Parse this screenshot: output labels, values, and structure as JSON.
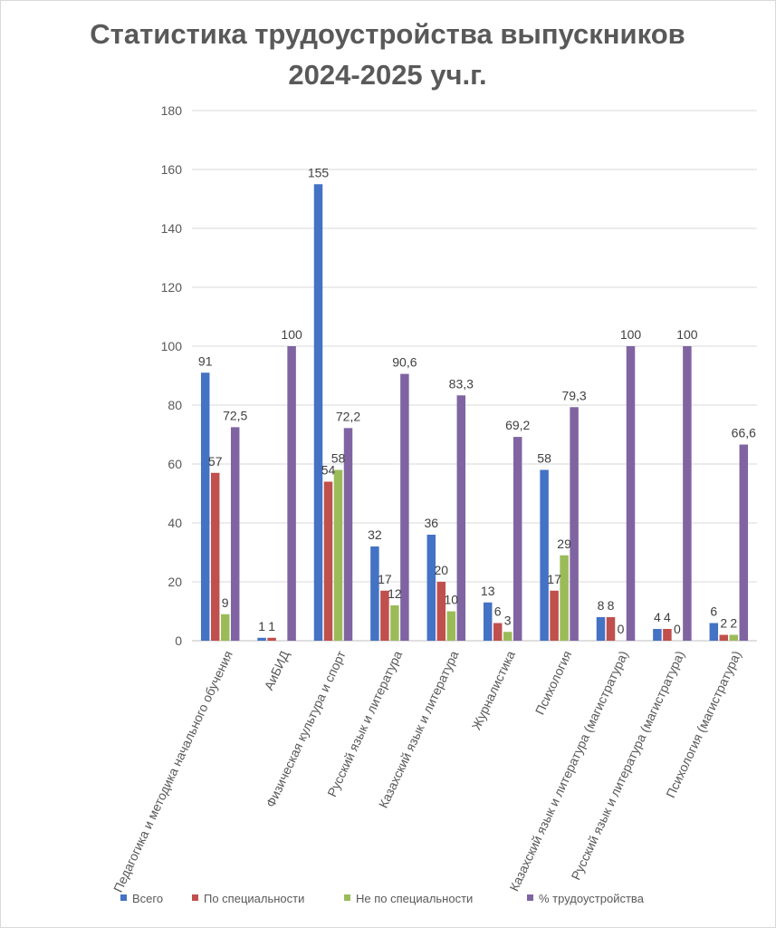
{
  "chart_data": {
    "type": "bar",
    "title": "Статистика трудоустройства выпускников",
    "subtitle": "2024-2025 уч.г.",
    "xlabel": "",
    "ylabel": "",
    "ylim": [
      0,
      180
    ],
    "yticks": [
      0,
      20,
      40,
      60,
      80,
      100,
      120,
      140,
      160,
      180
    ],
    "grid": true,
    "legend_position": "bottom",
    "categories": [
      "Педагогика и методика начального обучения",
      "АиБИД",
      "Физическая культура и спорт",
      "Русский язык и литература",
      "Казахский язык и литература",
      "Журналистика",
      "Психология",
      "Казахский язык и литература (магистратура)",
      "Русский язык и литература (магистратура)",
      "Психология (магистратура)"
    ],
    "series": [
      {
        "name": "Всего",
        "color": "#4472C4",
        "values": [
          91,
          1,
          155,
          32,
          36,
          13,
          58,
          8,
          4,
          6
        ],
        "labels": [
          "91",
          "1",
          "155",
          "32",
          "36",
          "13",
          "58",
          "8",
          "4",
          "6"
        ]
      },
      {
        "name": "По специальности",
        "color": "#C0504D",
        "values": [
          57,
          1,
          54,
          17,
          20,
          6,
          17,
          8,
          4,
          2
        ],
        "labels": [
          "57",
          "1",
          "54",
          "17",
          "20",
          "6",
          "17",
          "8",
          "4",
          "2"
        ]
      },
      {
        "name": "Не по специальности",
        "color": "#9BBB59",
        "values": [
          9,
          null,
          58,
          12,
          10,
          3,
          29,
          0,
          0,
          2
        ],
        "labels": [
          "9",
          null,
          "58",
          "12",
          "10",
          "3",
          "29",
          "0",
          "0",
          "2"
        ]
      },
      {
        "name": "% трудоустройства",
        "color": "#8064A2",
        "values": [
          72.5,
          100,
          72.2,
          90.6,
          83.3,
          69.2,
          79.3,
          100,
          100,
          66.6
        ],
        "labels": [
          "72,5",
          "100",
          "72,2",
          "90,6",
          "83,3",
          "69,2",
          "79,3",
          "100",
          "100",
          "66,6"
        ]
      }
    ]
  }
}
